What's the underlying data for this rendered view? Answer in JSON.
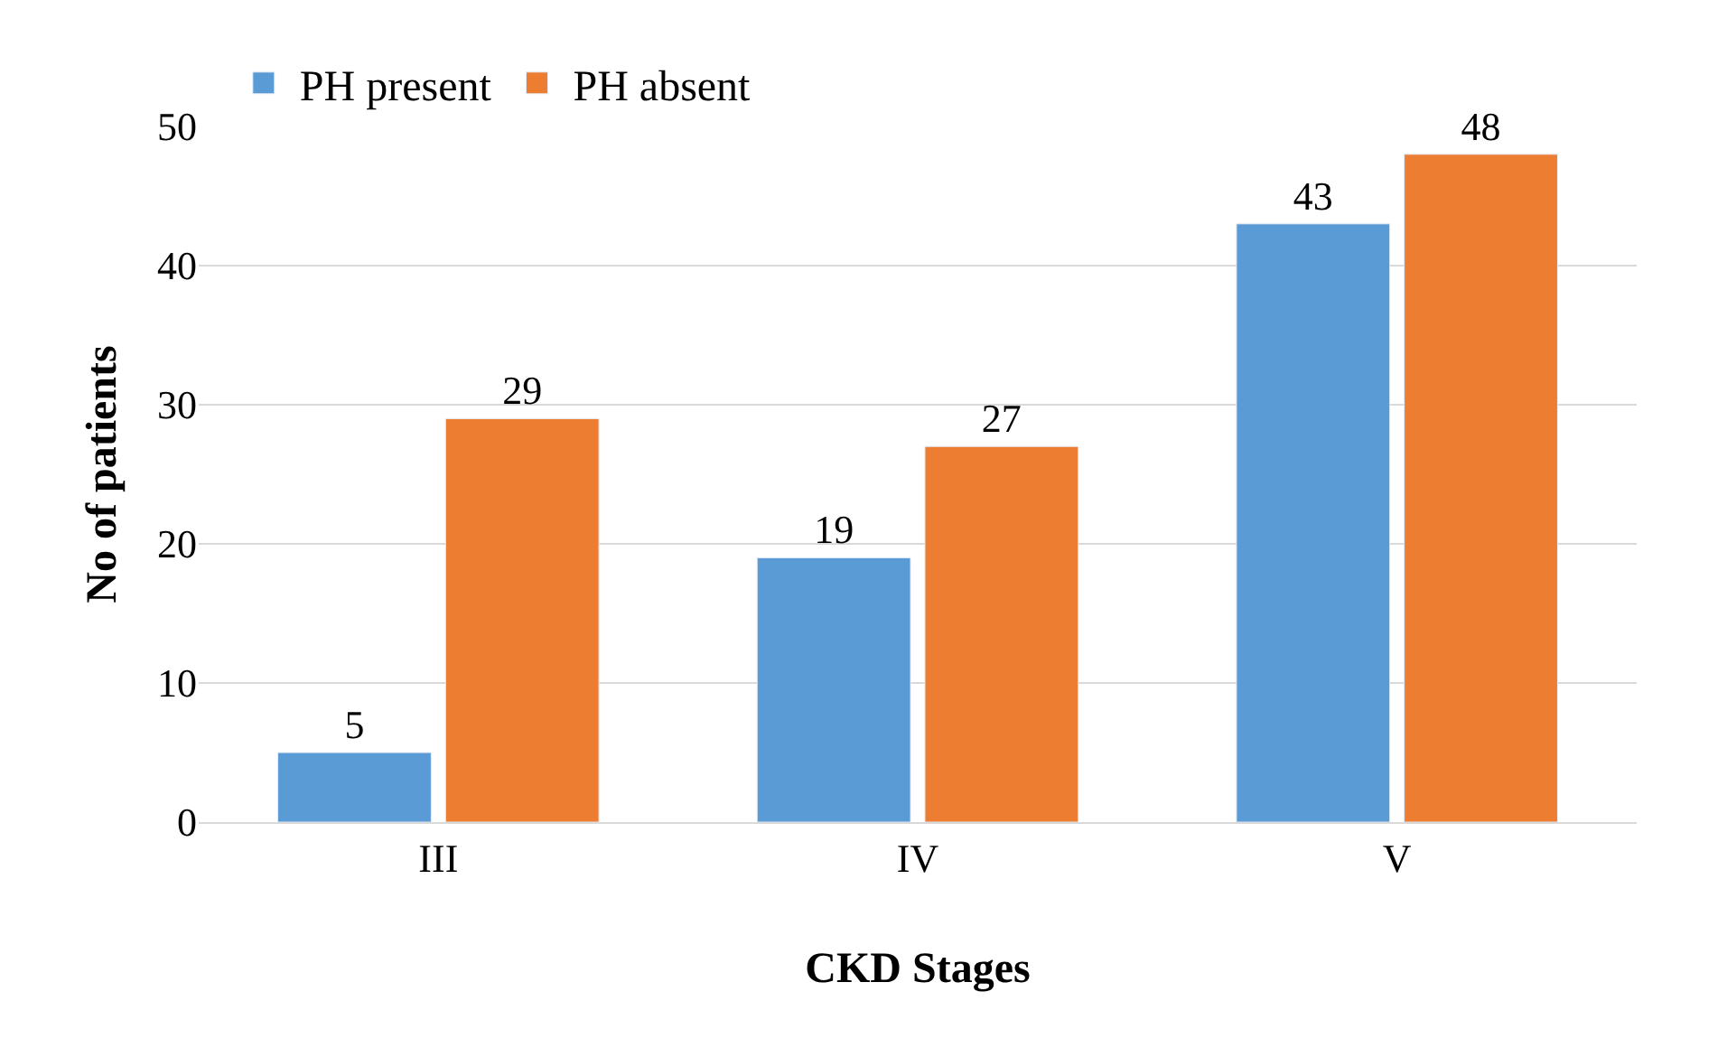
{
  "chart_data": {
    "type": "bar",
    "xlabel": "CKD Stages",
    "ylabel": "No of patients",
    "categories": [
      "III",
      "IV",
      "V"
    ],
    "series": [
      {
        "name": "PH present",
        "color": "#5b9bd5",
        "values": [
          5,
          19,
          43
        ]
      },
      {
        "name": "PH absent",
        "color": "#ed7d31",
        "values": [
          29,
          27,
          48
        ]
      }
    ],
    "ylim": [
      0,
      50
    ],
    "yticks": [
      0,
      10,
      20,
      30,
      40,
      50
    ],
    "grid": "y",
    "legend": "top left",
    "data_labels": true
  }
}
